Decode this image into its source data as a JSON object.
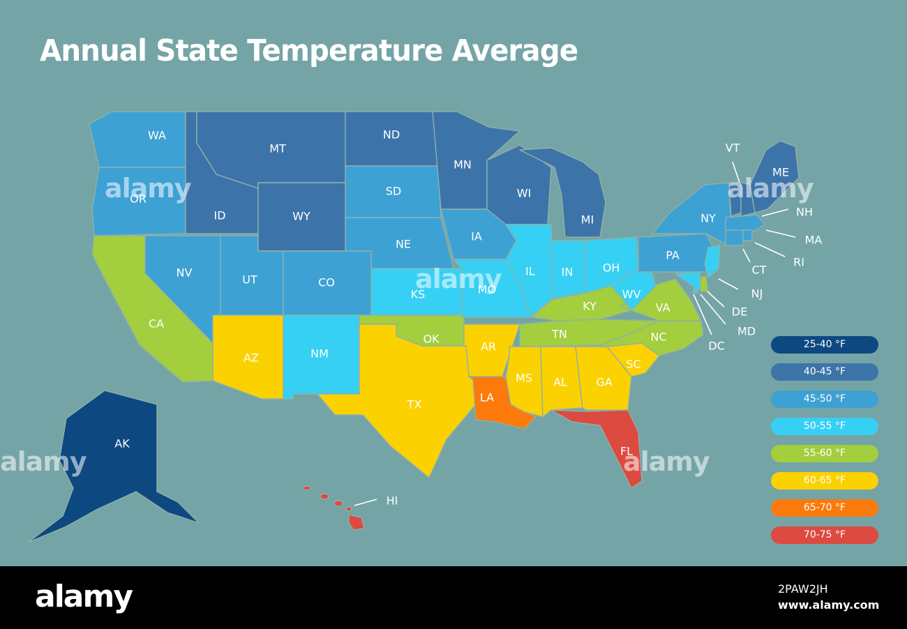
{
  "title": "Annual State Temperature Average",
  "colors": {
    "background": "#74a4a6",
    "t25_40": "#0d4880",
    "t40_45": "#3c74a9",
    "t45_50": "#3da1d4",
    "t50_55": "#36d0f5",
    "t55_60": "#a3ce3e",
    "t60_65": "#fbd100",
    "t65_70": "#fb7a0b",
    "t70_75": "#dd4a40"
  },
  "legend": [
    {
      "label": "25-40 °F",
      "color": "#0d4880"
    },
    {
      "label": "40-45 °F",
      "color": "#3c74a9"
    },
    {
      "label": "45-50 °F",
      "color": "#3da1d4"
    },
    {
      "label": "50-55 °F",
      "color": "#36d0f5"
    },
    {
      "label": "55-60 °F",
      "color": "#a3ce3e"
    },
    {
      "label": "60-65 °F",
      "color": "#fbd100"
    },
    {
      "label": "65-70 °F",
      "color": "#fb7a0b"
    },
    {
      "label": "70-75 °F",
      "color": "#dd4a40"
    }
  ],
  "states": {
    "WA": "WA",
    "OR": "OR",
    "CA": "CA",
    "NV": "NV",
    "ID": "ID",
    "MT": "MT",
    "WY": "WY",
    "UT": "UT",
    "CO": "CO",
    "AZ": "AZ",
    "NM": "NM",
    "ND": "ND",
    "SD": "SD",
    "NE": "NE",
    "KS": "KS",
    "OK": "OK",
    "TX": "TX",
    "MN": "MN",
    "IA": "IA",
    "MO": "MO",
    "AR": "AR",
    "LA": "LA",
    "WI": "WI",
    "IL": "IL",
    "MI": "MI",
    "IN": "IN",
    "OH": "OH",
    "KY": "KY",
    "TN": "TN",
    "MS": "MS",
    "AL": "AL",
    "GA": "GA",
    "FL": "FL",
    "SC": "SC",
    "NC": "NC",
    "VA": "VA",
    "WV": "WV",
    "PA": "PA",
    "NY": "NY",
    "VT": "VT",
    "ME": "ME",
    "NH": "NH",
    "MA": "MA",
    "RI": "RI",
    "CT": "CT",
    "NJ": "NJ",
    "DE": "DE",
    "MD": "MD",
    "DC": "DC",
    "AK": "AK",
    "HI": "HI"
  },
  "footer": {
    "brand": "alamy",
    "image_id": "2PAW2JH",
    "site": "www.alamy.com",
    "watermark": "alamy"
  }
}
